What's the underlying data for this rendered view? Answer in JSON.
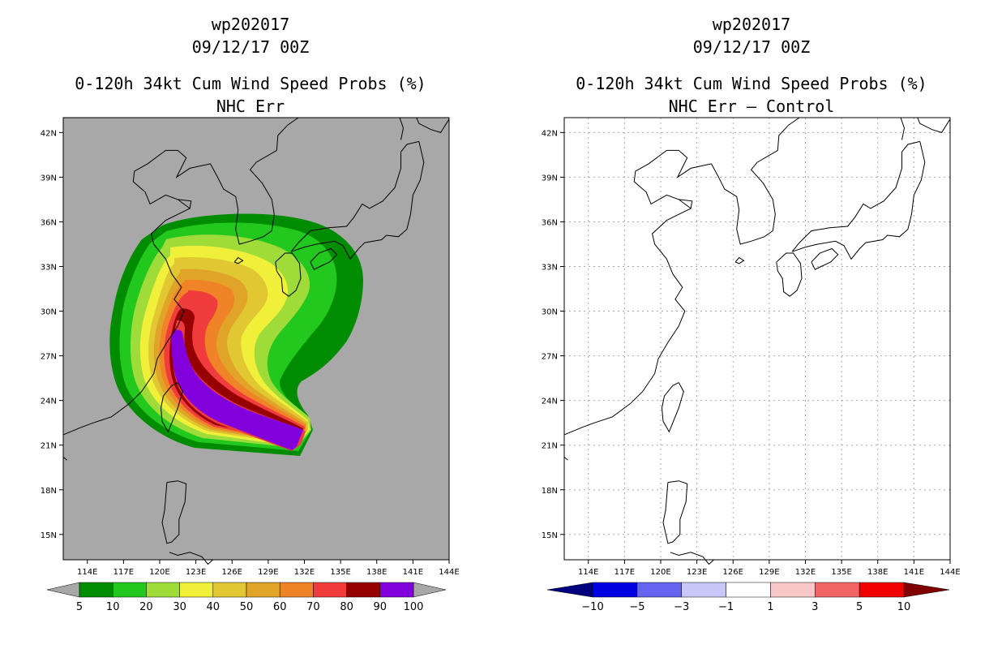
{
  "left_panel": {
    "title_storm": "wp202017",
    "title_datetime": "09/12/17 00Z",
    "title_product": "0-120h 34kt Cum Wind Speed Probs (%)",
    "title_subtitle": "NHC Err",
    "background_color": "#a8a8a8",
    "colorbar": {
      "bins": [
        {
          "color": "#008c00"
        },
        {
          "color": "#22c81e"
        },
        {
          "color": "#9fdc3a"
        },
        {
          "color": "#f0f03a"
        },
        {
          "color": "#e1c832"
        },
        {
          "color": "#e0a528"
        },
        {
          "color": "#f08228"
        },
        {
          "color": "#f03c3c"
        },
        {
          "color": "#960000"
        },
        {
          "color": "#8200dc"
        }
      ],
      "labels": [
        "5",
        "10",
        "20",
        "30",
        "40",
        "50",
        "60",
        "70",
        "80",
        "90",
        "100"
      ]
    }
  },
  "right_panel": {
    "title_storm": "wp202017",
    "title_datetime": "09/12/17 00Z",
    "title_product": "0-120h 34kt Cum Wind Speed Probs (%)",
    "title_subtitle": "NHC Err – Control",
    "background_color": "#ffffff",
    "colorbar": {
      "arrow_left_color": "#00007f",
      "arrow_right_color": "#7f0000",
      "bins": [
        {
          "color": "#0000e0"
        },
        {
          "color": "#6464f0"
        },
        {
          "color": "#c8c8f8"
        },
        {
          "color": "#ffffff"
        },
        {
          "color": "#f8c8c8"
        },
        {
          "color": "#f06464"
        },
        {
          "color": "#f00000"
        }
      ],
      "labels": [
        "−10",
        "−5",
        "−3",
        "−1",
        "1",
        "3",
        "5",
        "10"
      ]
    }
  },
  "map": {
    "lon_labels": [
      "114E",
      "117E",
      "120E",
      "123E",
      "126E",
      "129E",
      "132E",
      "135E",
      "138E",
      "141E",
      "144E"
    ],
    "lat_labels": [
      "42N",
      "39N",
      "36N",
      "33N",
      "30N",
      "27N",
      "24N",
      "21N",
      "18N",
      "15N"
    ],
    "lon_range": [
      112,
      144
    ],
    "lat_range": [
      13.3,
      43.0
    ]
  }
}
